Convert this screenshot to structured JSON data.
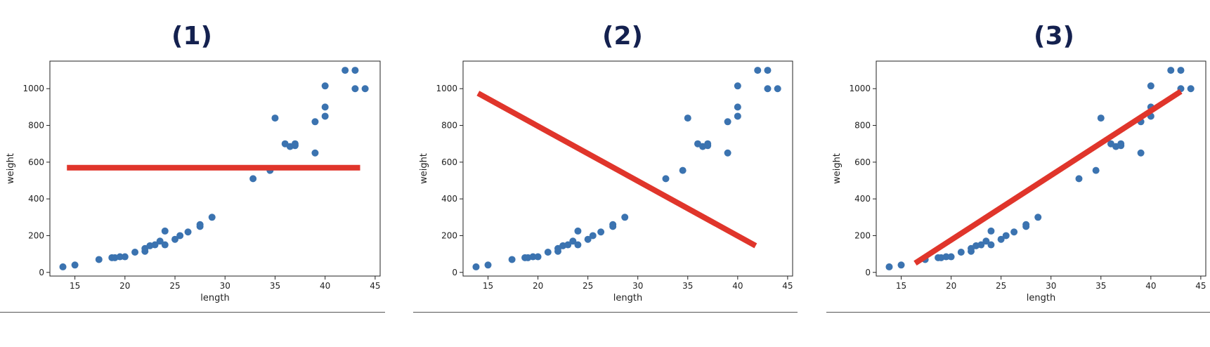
{
  "chart_data": [
    {
      "type": "scatter",
      "title": "(1)",
      "xlabel": "length",
      "ylabel": "weight",
      "xlim": [
        12.5,
        45.5
      ],
      "ylim": [
        -20,
        1150
      ],
      "xticks": [
        15,
        20,
        25,
        30,
        35,
        40,
        45
      ],
      "yticks": [
        0,
        200,
        400,
        600,
        800,
        1000
      ],
      "grid": false,
      "color": "#3b73b0",
      "line_color": "#e0352b",
      "points": [
        [
          13.8,
          30
        ],
        [
          15,
          40
        ],
        [
          17.4,
          70
        ],
        [
          18.7,
          80
        ],
        [
          19,
          80
        ],
        [
          19.5,
          85
        ],
        [
          20,
          85
        ],
        [
          21,
          110
        ],
        [
          22,
          115
        ],
        [
          22,
          130
        ],
        [
          22.5,
          145
        ],
        [
          23,
          150
        ],
        [
          23.5,
          170
        ],
        [
          24,
          150
        ],
        [
          24,
          225
        ],
        [
          25,
          180
        ],
        [
          25.5,
          200
        ],
        [
          26.3,
          220
        ],
        [
          27.5,
          250
        ],
        [
          27.5,
          260
        ],
        [
          28.7,
          300
        ],
        [
          32.8,
          510
        ],
        [
          34.5,
          555
        ],
        [
          35,
          840
        ],
        [
          36,
          700
        ],
        [
          36.5,
          685
        ],
        [
          37,
          690
        ],
        [
          37,
          700
        ],
        [
          39,
          650
        ],
        [
          39,
          820
        ],
        [
          40,
          850
        ],
        [
          40,
          900
        ],
        [
          40,
          1015
        ],
        [
          42,
          1100
        ],
        [
          43,
          1100
        ],
        [
          43,
          1000
        ],
        [
          44,
          1000
        ]
      ],
      "fit_line": [
        [
          14.2,
          570
        ],
        [
          43.5,
          570
        ]
      ]
    },
    {
      "type": "scatter",
      "title": "(2)",
      "xlabel": "length",
      "ylabel": "weight",
      "xlim": [
        12.5,
        45.5
      ],
      "ylim": [
        -20,
        1150
      ],
      "xticks": [
        15,
        20,
        25,
        30,
        35,
        40,
        45
      ],
      "yticks": [
        0,
        200,
        400,
        600,
        800,
        1000
      ],
      "grid": false,
      "color": "#3b73b0",
      "line_color": "#e0352b",
      "points": [
        [
          13.8,
          30
        ],
        [
          15,
          40
        ],
        [
          17.4,
          70
        ],
        [
          18.7,
          80
        ],
        [
          19,
          80
        ],
        [
          19.5,
          85
        ],
        [
          20,
          85
        ],
        [
          21,
          110
        ],
        [
          22,
          115
        ],
        [
          22,
          130
        ],
        [
          22.5,
          145
        ],
        [
          23,
          150
        ],
        [
          23.5,
          170
        ],
        [
          24,
          150
        ],
        [
          24,
          225
        ],
        [
          25,
          180
        ],
        [
          25.5,
          200
        ],
        [
          26.3,
          220
        ],
        [
          27.5,
          250
        ],
        [
          27.5,
          260
        ],
        [
          28.7,
          300
        ],
        [
          32.8,
          510
        ],
        [
          34.5,
          555
        ],
        [
          35,
          840
        ],
        [
          36,
          700
        ],
        [
          36.5,
          685
        ],
        [
          37,
          690
        ],
        [
          37,
          700
        ],
        [
          39,
          650
        ],
        [
          39,
          820
        ],
        [
          40,
          850
        ],
        [
          40,
          900
        ],
        [
          40,
          1015
        ],
        [
          42,
          1100
        ],
        [
          43,
          1100
        ],
        [
          43,
          1000
        ],
        [
          44,
          1000
        ]
      ],
      "fit_line": [
        [
          14,
          975
        ],
        [
          41.8,
          145
        ]
      ]
    },
    {
      "type": "scatter",
      "title": "(3)",
      "xlabel": "length",
      "ylabel": "weight",
      "xlim": [
        12.5,
        45.5
      ],
      "ylim": [
        -20,
        1150
      ],
      "xticks": [
        15,
        20,
        25,
        30,
        35,
        40,
        45
      ],
      "yticks": [
        0,
        200,
        400,
        600,
        800,
        1000
      ],
      "grid": false,
      "color": "#3b73b0",
      "line_color": "#e0352b",
      "points": [
        [
          13.8,
          30
        ],
        [
          15,
          40
        ],
        [
          17.4,
          70
        ],
        [
          18.7,
          80
        ],
        [
          19,
          80
        ],
        [
          19.5,
          85
        ],
        [
          20,
          85
        ],
        [
          21,
          110
        ],
        [
          22,
          115
        ],
        [
          22,
          130
        ],
        [
          22.5,
          145
        ],
        [
          23,
          150
        ],
        [
          23.5,
          170
        ],
        [
          24,
          150
        ],
        [
          24,
          225
        ],
        [
          25,
          180
        ],
        [
          25.5,
          200
        ],
        [
          26.3,
          220
        ],
        [
          27.5,
          250
        ],
        [
          27.5,
          260
        ],
        [
          28.7,
          300
        ],
        [
          32.8,
          510
        ],
        [
          34.5,
          555
        ],
        [
          35,
          840
        ],
        [
          36,
          700
        ],
        [
          36.5,
          685
        ],
        [
          37,
          690
        ],
        [
          37,
          700
        ],
        [
          39,
          650
        ],
        [
          39,
          820
        ],
        [
          40,
          850
        ],
        [
          40,
          900
        ],
        [
          40,
          1015
        ],
        [
          42,
          1100
        ],
        [
          43,
          1100
        ],
        [
          43,
          1000
        ],
        [
          44,
          1000
        ]
      ],
      "fit_line": [
        [
          16.4,
          50
        ],
        [
          43,
          985
        ]
      ]
    }
  ]
}
